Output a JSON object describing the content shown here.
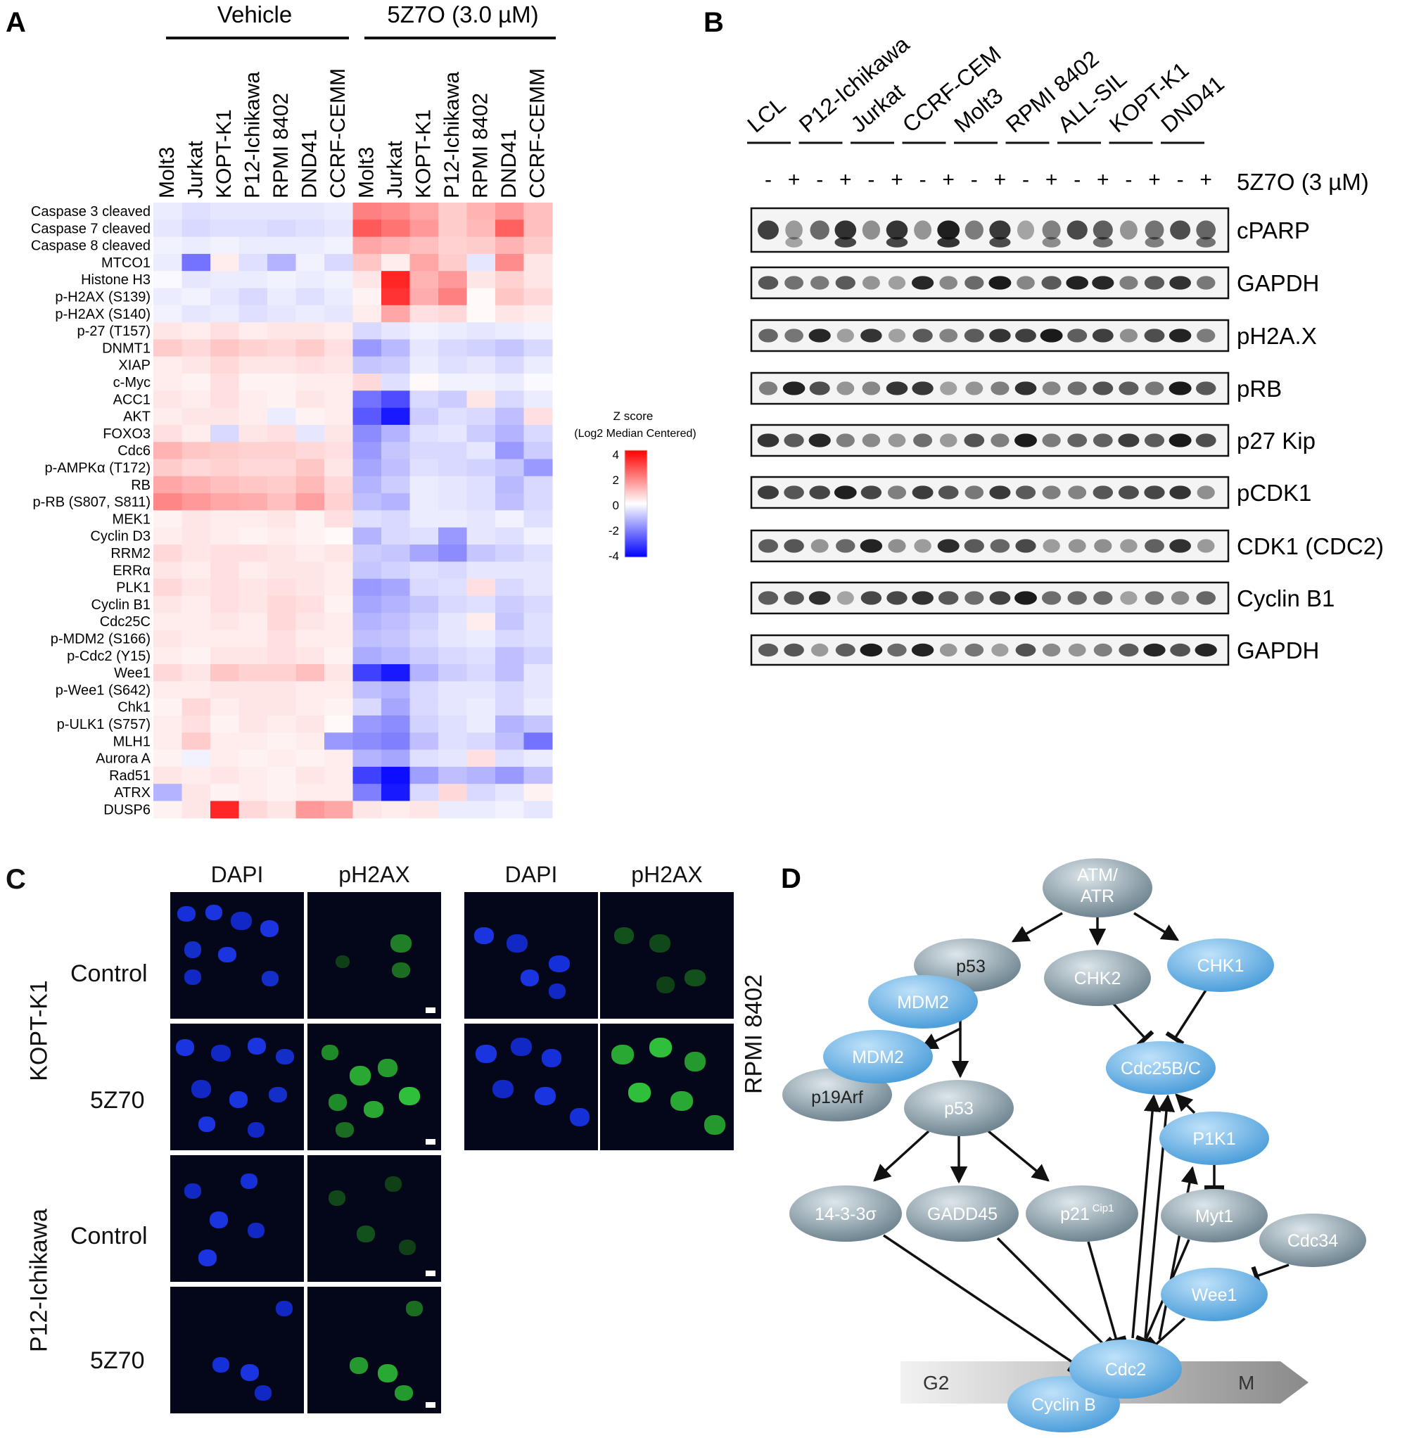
{
  "panel_letters": {
    "a": "A",
    "b": "B",
    "c": "C",
    "d": "D"
  },
  "panel_a": {
    "groups": [
      {
        "label": "Vehicle"
      },
      {
        "label": "5Z7O (3.0 µM)"
      }
    ],
    "cell_lines": [
      "Molt3",
      "Jurkat",
      "KOPT-K1",
      "P12-Ichikawa",
      "RPMI 8402",
      "DND41",
      "CCRF-CEMM",
      "Molt3",
      "Jurkat",
      "KOPT-K1",
      "P12-Ichikawa",
      "RPMI 8402",
      "DND41",
      "CCRF-CEMM"
    ],
    "rows": [
      "Caspase 3 cleaved",
      "Caspase 7 cleaved",
      "Caspase 8 cleaved",
      "MTCO1",
      "Histone H3",
      "p-H2AX (S139)",
      "p-H2AX (S140)",
      "p-27 (T157)",
      "DNMT1",
      "XIAP",
      "c-Myc",
      "ACC1",
      "AKT",
      "FOXO3",
      "Cdc6",
      "p-AMPKα (T172)",
      "RB",
      "p-RB (S807, S811)",
      "MEK1",
      "Cyclin D3",
      "RRM2",
      "ERRα",
      "PLK1",
      "Cyclin B1",
      "Cdc25C",
      "p-MDM2 (S166)",
      "p-Cdc2 (Y15)",
      "Wee1",
      "p-Wee1 (S642)",
      "Chk1",
      "p-ULK1 (S757)",
      "MLH1",
      "Aurora A",
      "Rad51",
      "ATRX",
      "DUSP6"
    ],
    "legend": {
      "title_line1": "Z score",
      "title_line2": "(Log2 Median Centered)",
      "ticks": [
        "4",
        "2",
        "0",
        "-2",
        "-4"
      ],
      "colors": {
        "high": "#ff0000",
        "mid": "#ffffff",
        "low": "#0000ff"
      }
    }
  },
  "chart_data": {
    "type": "heatmap",
    "x": [
      "Molt3",
      "Jurkat",
      "KOPT-K1",
      "P12-Ichikawa",
      "RPMI 8402",
      "DND41",
      "CCRF-CEMM",
      "Molt3",
      "Jurkat",
      "KOPT-K1",
      "P12-Ichikawa",
      "RPMI 8402",
      "DND41",
      "CCRF-CEMM"
    ],
    "y": [
      "Caspase 3 cleaved",
      "Caspase 7 cleaved",
      "Caspase 8 cleaved",
      "MTCO1",
      "Histone H3",
      "p-H2AX (S139)",
      "p-H2AX (S140)",
      "p-27 (T157)",
      "DNMT1",
      "XIAP",
      "c-Myc",
      "ACC1",
      "AKT",
      "FOXO3",
      "Cdc6",
      "p-AMPKα (T172)",
      "RB",
      "p-RB (S807, S811)",
      "MEK1",
      "Cyclin D3",
      "RRM2",
      "ERRα",
      "PLK1",
      "Cyclin B1",
      "Cdc25C",
      "p-MDM2 (S166)",
      "p-Cdc2 (Y15)",
      "Wee1",
      "p-Wee1 (S642)",
      "Chk1",
      "p-ULK1 (S757)",
      "MLH1",
      "Aurora A",
      "Rad51",
      "ATRX",
      "DUSP6"
    ],
    "zlim": [
      -4,
      4
    ],
    "values": [
      [
        -0.3,
        -0.5,
        -0.4,
        -0.4,
        -0.4,
        -0.4,
        -0.3,
        2.0,
        1.8,
        1.4,
        0.8,
        1.2,
        1.6,
        1.0
      ],
      [
        -0.4,
        -0.6,
        -0.5,
        -0.5,
        -0.6,
        -0.5,
        -0.4,
        2.6,
        2.2,
        1.6,
        0.8,
        1.1,
        2.5,
        1.0
      ],
      [
        -0.2,
        -0.3,
        -0.2,
        -0.3,
        -0.3,
        -0.3,
        -0.2,
        1.4,
        1.2,
        1.0,
        0.7,
        0.8,
        1.2,
        0.8
      ],
      [
        -0.3,
        -2.2,
        0.3,
        -0.5,
        -1.2,
        -0.2,
        -0.6,
        0.9,
        0.3,
        1.4,
        0.8,
        -0.4,
        1.8,
        0.4
      ],
      [
        -0.1,
        -0.4,
        -0.3,
        -0.3,
        -0.2,
        -0.3,
        -0.2,
        0.4,
        3.4,
        1.2,
        1.6,
        0.4,
        0.7,
        0.4
      ],
      [
        -0.3,
        -0.2,
        -0.4,
        -0.6,
        -0.3,
        -0.5,
        -0.3,
        0.2,
        3.2,
        1.3,
        2.0,
        0.1,
        0.9,
        0.6
      ],
      [
        -0.2,
        -0.4,
        -0.3,
        -0.5,
        -0.4,
        -0.3,
        -0.4,
        0.3,
        1.4,
        0.5,
        0.6,
        0.1,
        0.4,
        0.3
      ],
      [
        0.4,
        0.3,
        0.5,
        0.3,
        0.4,
        0.4,
        0.3,
        -0.6,
        -0.4,
        -0.2,
        -0.3,
        -0.4,
        -0.3,
        -0.2
      ],
      [
        0.8,
        0.6,
        0.9,
        0.7,
        0.6,
        0.8,
        0.5,
        -1.6,
        -1.1,
        -0.4,
        -0.6,
        -0.7,
        -0.9,
        -0.6
      ],
      [
        0.3,
        0.4,
        0.6,
        0.4,
        0.4,
        0.5,
        0.4,
        -0.9,
        -0.8,
        -0.3,
        -0.5,
        -0.4,
        -0.6,
        -0.3
      ],
      [
        0.3,
        0.2,
        0.5,
        0.2,
        0.2,
        0.3,
        0.3,
        0.6,
        -0.5,
        0.1,
        -0.2,
        -0.2,
        -0.3,
        -0.1
      ],
      [
        0.4,
        0.3,
        0.5,
        0.3,
        0.2,
        0.4,
        0.3,
        -2.2,
        -2.8,
        -0.6,
        -0.8,
        0.4,
        -0.6,
        -0.3
      ],
      [
        0.3,
        0.4,
        0.4,
        0.3,
        -0.3,
        0.2,
        0.3,
        -2.6,
        -3.6,
        -0.8,
        -0.5,
        -0.6,
        -1.0,
        0.5
      ],
      [
        0.5,
        0.3,
        -0.6,
        0.4,
        0.5,
        -0.4,
        0.4,
        -1.8,
        -1.2,
        -0.5,
        -0.4,
        -0.8,
        -1.2,
        -0.6
      ],
      [
        1.2,
        0.9,
        0.8,
        0.7,
        0.7,
        0.6,
        0.5,
        -1.6,
        -0.9,
        -0.6,
        -0.6,
        -0.4,
        -1.6,
        -0.8
      ],
      [
        0.8,
        0.6,
        0.7,
        0.6,
        0.6,
        0.9,
        0.4,
        -1.4,
        -1.0,
        -0.5,
        -0.6,
        -0.7,
        -0.9,
        -1.6
      ],
      [
        1.4,
        1.2,
        1.0,
        0.9,
        0.8,
        1.1,
        0.6,
        -1.2,
        -0.8,
        -0.3,
        -0.4,
        -0.5,
        -1.1,
        -0.6
      ],
      [
        1.9,
        1.6,
        1.4,
        1.3,
        1.0,
        1.5,
        0.7,
        -1.0,
        -1.2,
        -0.3,
        -0.4,
        -0.5,
        -1.0,
        -0.6
      ],
      [
        0.2,
        0.4,
        0.3,
        0.3,
        0.4,
        0.2,
        0.5,
        -0.5,
        -0.6,
        -0.3,
        -0.3,
        -0.4,
        -0.2,
        -0.5
      ],
      [
        0.3,
        0.4,
        0.3,
        0.2,
        0.3,
        0.2,
        0.1,
        -1.2,
        -0.6,
        -0.5,
        -1.6,
        -0.4,
        -0.5,
        -0.2
      ],
      [
        0.6,
        0.4,
        0.5,
        0.5,
        0.4,
        0.3,
        0.4,
        -0.8,
        -0.9,
        -1.4,
        -1.8,
        -0.9,
        -0.7,
        -0.5
      ],
      [
        0.4,
        0.3,
        0.5,
        0.3,
        0.4,
        0.4,
        0.3,
        -0.9,
        -0.7,
        -0.5,
        -0.6,
        -0.4,
        -0.4,
        -0.4
      ],
      [
        0.6,
        0.4,
        0.5,
        0.4,
        0.5,
        0.4,
        0.3,
        -1.6,
        -1.4,
        -0.6,
        -0.5,
        0.5,
        -0.6,
        -0.4
      ],
      [
        0.4,
        0.3,
        0.5,
        0.4,
        0.6,
        0.5,
        0.2,
        -1.4,
        -1.2,
        -0.9,
        -0.6,
        -0.5,
        -0.8,
        -0.6
      ],
      [
        0.3,
        0.3,
        0.4,
        0.3,
        0.6,
        0.4,
        0.3,
        -1.2,
        -1.0,
        -0.7,
        -0.4,
        0.3,
        -0.9,
        -0.5
      ],
      [
        0.4,
        0.3,
        0.3,
        0.3,
        0.5,
        0.3,
        0.3,
        -1.0,
        -0.9,
        -0.6,
        -0.4,
        -0.3,
        -0.6,
        -0.5
      ],
      [
        0.3,
        0.2,
        0.4,
        0.4,
        0.5,
        0.4,
        0.2,
        -1.3,
        -1.1,
        -0.8,
        -0.6,
        -0.5,
        -1.0,
        -0.7
      ],
      [
        0.6,
        0.4,
        0.9,
        0.7,
        0.7,
        1.0,
        0.4,
        -3.0,
        -3.6,
        -1.2,
        -0.8,
        -0.6,
        -1.0,
        -0.4
      ],
      [
        0.3,
        0.3,
        0.4,
        0.4,
        0.4,
        0.3,
        0.3,
        -1.0,
        -1.2,
        -0.6,
        -0.4,
        -0.4,
        -0.6,
        -0.4
      ],
      [
        0.2,
        0.6,
        0.3,
        0.4,
        0.4,
        0.3,
        0.2,
        -0.6,
        -1.4,
        -0.6,
        -0.4,
        -0.3,
        -0.6,
        -0.3
      ],
      [
        0.3,
        0.5,
        0.2,
        0.4,
        0.3,
        0.4,
        0.1,
        -1.6,
        -1.8,
        -0.7,
        -0.5,
        -0.3,
        -1.2,
        -0.9
      ],
      [
        0.3,
        0.8,
        0.3,
        0.3,
        0.2,
        0.3,
        -1.6,
        -1.8,
        -2.0,
        -1.0,
        -0.5,
        -0.6,
        -1.0,
        -2.2
      ],
      [
        0.2,
        -0.2,
        0.3,
        0.2,
        0.3,
        0.2,
        0.3,
        -1.2,
        -1.4,
        -0.5,
        -0.4,
        0.5,
        -0.5,
        -0.3
      ],
      [
        0.4,
        0.3,
        0.4,
        0.3,
        0.2,
        0.4,
        0.3,
        -3.0,
        -3.8,
        -1.5,
        -1.0,
        -1.2,
        -1.6,
        -1.0
      ],
      [
        -1.2,
        0.4,
        0.2,
        0.3,
        0.2,
        0.3,
        0.3,
        -2.0,
        -3.6,
        -0.6,
        0.6,
        -0.6,
        -0.4,
        0.2
      ],
      [
        0.2,
        0.4,
        3.4,
        0.6,
        0.4,
        1.6,
        1.4,
        0.4,
        0.3,
        0.4,
        -0.3,
        -0.3,
        -0.2,
        -0.4
      ]
    ]
  },
  "panel_b": {
    "lanes": [
      "LCL",
      "P12-Ichikawa",
      "Jurkat",
      "CCRF-CEM",
      "Molt3",
      "RPMI 8402",
      "ALL-SIL",
      "KOPT-K1",
      "DND41"
    ],
    "treatment_marks": [
      "-",
      "+"
    ],
    "treatment_label": "5Z7O (3 µM)",
    "blots": [
      "cPARP",
      "GAPDH",
      "pH2A.X",
      "pRB",
      "p27 Kip",
      "pCDK1",
      "CDK1 (CDC2)",
      "Cyclin B1",
      "GAPDH"
    ]
  },
  "panel_c": {
    "left_headers": [
      "DAPI",
      "pH2AX"
    ],
    "right_headers": [
      "DAPI",
      "pH2AX"
    ],
    "left_cell_lines": [
      "KOPT-K1",
      "P12-Ichikawa"
    ],
    "right_cell_line": "RPMI 8402",
    "row_labels": [
      "Control",
      "5Z70",
      "Control",
      "5Z70"
    ],
    "colors": {
      "dapi": "#1a3cff",
      "ph2ax": "#2fbf3a",
      "background": "#04061a"
    }
  },
  "panel_d": {
    "nodes": {
      "atm": "ATM/\nATR",
      "p53_top": "p53",
      "chk2": "CHK2",
      "chk1": "CHK1",
      "mdm2_a": "MDM2",
      "mdm2_b": "MDM2",
      "p19arf": "p19Arf",
      "p53_mid": "p53",
      "cdc25": "Cdc25B/C",
      "p1k1": "P1K1",
      "myt1": "Myt1",
      "cdc34": "Cdc34",
      "wee1": "Wee1",
      "s1433": "14-3-3σ",
      "gadd45": "GADD45",
      "p21": "p21",
      "p21_sup": "Cip1",
      "cdc2": "Cdc2",
      "cyclinb": "Cyclin B"
    },
    "phases": {
      "g2": "G2",
      "m": "M"
    },
    "colors": {
      "blue": "#4aa3e0",
      "gray": "#6f8794"
    }
  }
}
